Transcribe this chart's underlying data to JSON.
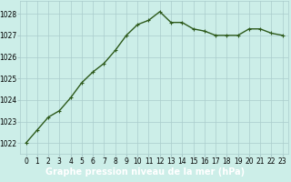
{
  "x": [
    0,
    1,
    2,
    3,
    4,
    5,
    6,
    7,
    8,
    9,
    10,
    11,
    12,
    13,
    14,
    15,
    16,
    17,
    18,
    19,
    20,
    21,
    22,
    23
  ],
  "y": [
    1022.0,
    1022.6,
    1023.2,
    1023.5,
    1024.1,
    1024.8,
    1025.3,
    1025.7,
    1026.3,
    1027.0,
    1027.5,
    1027.7,
    1028.1,
    1027.6,
    1027.6,
    1027.3,
    1027.2,
    1027.0,
    1027.0,
    1027.0,
    1027.3,
    1027.3,
    1027.1,
    1027.0
  ],
  "line_color": "#2d5a1b",
  "marker": "+",
  "marker_color": "#2d5a1b",
  "bg_color": "#cceee8",
  "grid_color": "#aacccc",
  "label_bar_color": "#1a7a1a",
  "label_text": "Graphe pression niveau de la mer (hPa)",
  "label_text_color": "#ffffff",
  "ylim": [
    1021.5,
    1028.6
  ],
  "xlim": [
    -0.5,
    23.5
  ],
  "yticks": [
    1022,
    1023,
    1024,
    1025,
    1026,
    1027,
    1028
  ],
  "xticks": [
    0,
    1,
    2,
    3,
    4,
    5,
    6,
    7,
    8,
    9,
    10,
    11,
    12,
    13,
    14,
    15,
    16,
    17,
    18,
    19,
    20,
    21,
    22,
    23
  ],
  "tick_fontsize": 5.5,
  "label_fontsize": 7,
  "line_width": 1.0,
  "marker_size": 3.5
}
